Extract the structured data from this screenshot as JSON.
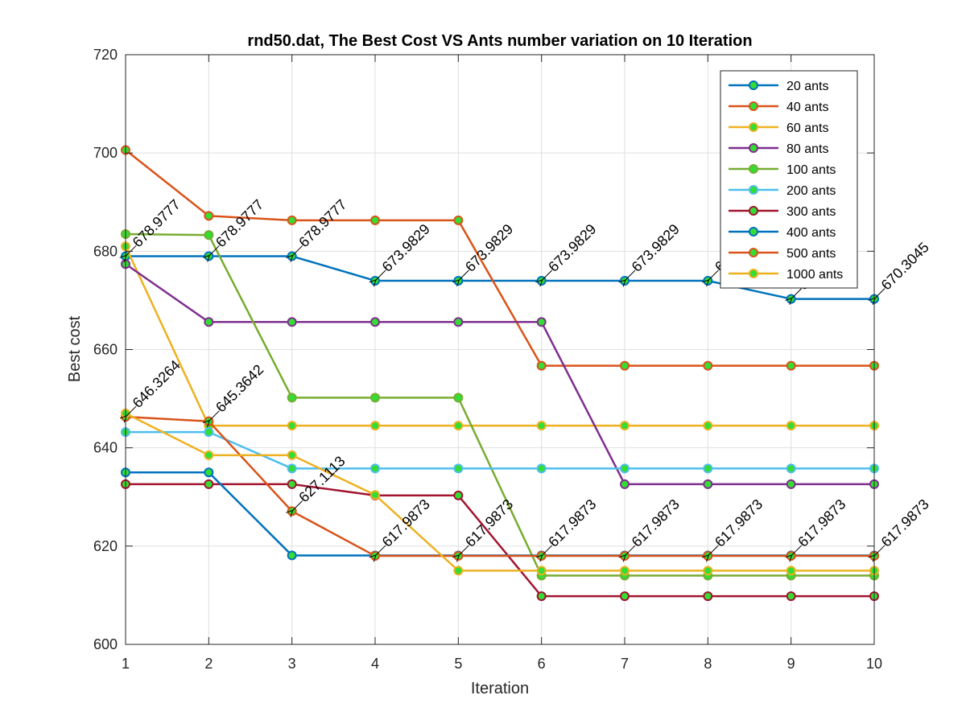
{
  "chart_data": {
    "type": "line",
    "title": "rnd50.dat, The Best Cost  VS Ants number variation on 10 Iteration",
    "xlabel": "Iteration",
    "ylabel": "Best cost",
    "xlim": [
      1,
      10
    ],
    "ylim": [
      600,
      720
    ],
    "x_ticks": [
      "1",
      "2",
      "3",
      "4",
      "5",
      "6",
      "7",
      "8",
      "9",
      "10"
    ],
    "y_ticks": [
      "600",
      "620",
      "640",
      "660",
      "680",
      "700",
      "720"
    ],
    "grid": true,
    "legend_position": "top-right",
    "x": [
      1,
      2,
      3,
      4,
      5,
      6,
      7,
      8,
      9,
      10
    ],
    "series": [
      {
        "name": "20 ants",
        "color": "#0072BD",
        "values": [
          679.0,
          679.0,
          679.0,
          674.0,
          674.0,
          674.0,
          674.0,
          674.0,
          670.3,
          670.3
        ]
      },
      {
        "name": "40 ants",
        "color": "#D95319",
        "values": [
          700.6,
          687.2,
          686.3,
          686.3,
          686.3,
          656.7,
          656.7,
          656.7,
          656.7,
          656.7
        ]
      },
      {
        "name": "60 ants",
        "color": "#EDB120",
        "values": [
          681.0,
          644.5,
          644.5,
          644.5,
          644.5,
          644.5,
          644.5,
          644.5,
          644.5,
          644.5
        ]
      },
      {
        "name": "80 ants",
        "color": "#7E2F8E",
        "values": [
          677.4,
          665.6,
          665.6,
          665.6,
          665.6,
          665.6,
          632.6,
          632.6,
          632.6,
          632.6
        ]
      },
      {
        "name": "100 ants",
        "color": "#77AC30",
        "values": [
          683.5,
          683.3,
          650.2,
          650.2,
          650.2,
          614.0,
          614.0,
          614.0,
          614.0,
          614.0
        ]
      },
      {
        "name": "200 ants",
        "color": "#4DBEEE",
        "values": [
          643.2,
          643.2,
          635.8,
          635.8,
          635.8,
          635.8,
          635.8,
          635.8,
          635.8,
          635.8
        ]
      },
      {
        "name": "300 ants",
        "color": "#A2142F",
        "values": [
          632.6,
          632.6,
          632.6,
          630.3,
          630.3,
          609.8,
          609.8,
          609.8,
          609.8,
          609.8
        ]
      },
      {
        "name": "400 ants",
        "color": "#0072BD",
        "values": [
          635.0,
          635.0,
          618.1,
          618.1,
          618.1,
          618.1,
          618.1,
          618.1,
          618.1,
          618.1
        ]
      },
      {
        "name": "500 ants",
        "color": "#D95319",
        "values": [
          646.3,
          645.4,
          627.1,
          618.0,
          618.0,
          618.0,
          618.0,
          618.0,
          618.0,
          618.0
        ]
      },
      {
        "name": "1000 ants",
        "color": "#EDB120",
        "values": [
          647.0,
          638.5,
          638.5,
          630.4,
          615.0,
          615.0,
          615.0,
          615.0,
          615.0,
          615.0
        ]
      }
    ],
    "annotations": [
      {
        "x": 1,
        "y": 679.0,
        "text": "678.9777"
      },
      {
        "x": 2,
        "y": 679.0,
        "text": "678.9777"
      },
      {
        "x": 3,
        "y": 679.0,
        "text": "678.9777"
      },
      {
        "x": 4,
        "y": 674.0,
        "text": "673.9829"
      },
      {
        "x": 5,
        "y": 674.0,
        "text": "673.9829"
      },
      {
        "x": 6,
        "y": 674.0,
        "text": "673.9829"
      },
      {
        "x": 7,
        "y": 674.0,
        "text": "673.9829"
      },
      {
        "x": 8,
        "y": 674.0,
        "text": "673.9829"
      },
      {
        "x": 9,
        "y": 670.3,
        "text": "670.3045"
      },
      {
        "x": 10,
        "y": 670.3,
        "text": "670.3045"
      },
      {
        "x": 1,
        "y": 646.3,
        "text": "646.3264"
      },
      {
        "x": 2,
        "y": 645.4,
        "text": "645.3642"
      },
      {
        "x": 3,
        "y": 627.1,
        "text": "627.1113"
      },
      {
        "x": 4,
        "y": 618.0,
        "text": "617.9873"
      },
      {
        "x": 5,
        "y": 618.0,
        "text": "617.9873"
      },
      {
        "x": 6,
        "y": 618.0,
        "text": "617.9873"
      },
      {
        "x": 7,
        "y": 618.0,
        "text": "617.9873"
      },
      {
        "x": 8,
        "y": 618.0,
        "text": "617.9873"
      },
      {
        "x": 9,
        "y": 618.0,
        "text": "617.9873"
      },
      {
        "x": 10,
        "y": 618.0,
        "text": "617.9873"
      }
    ],
    "marker_face_color": "#33DD33"
  }
}
